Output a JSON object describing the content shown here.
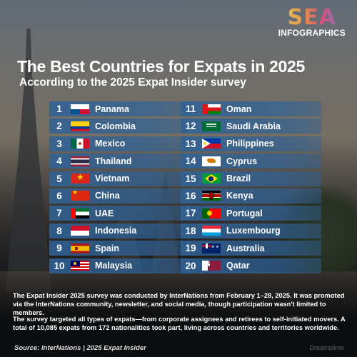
{
  "logo": {
    "main": "SEA",
    "sub": "INFOGRAPHICS"
  },
  "header": {
    "title": "The Best Countries for Expats in 2025",
    "subtitle": "According to the 2025 Expat Insider survey"
  },
  "rankings": {
    "left": [
      {
        "rank": "1",
        "country": "Panama",
        "flag": "panama-flag-icon"
      },
      {
        "rank": "2",
        "country": "Colombia",
        "flag": "colombia-flag-icon"
      },
      {
        "rank": "3",
        "country": "Mexico",
        "flag": "mexico-flag-icon"
      },
      {
        "rank": "4",
        "country": "Thailand",
        "flag": "thailand-flag-icon"
      },
      {
        "rank": "5",
        "country": "Vietnam",
        "flag": "vietnam-flag-icon"
      },
      {
        "rank": "6",
        "country": "China",
        "flag": "china-flag-icon"
      },
      {
        "rank": "7",
        "country": "UAE",
        "flag": "uae-flag-icon"
      },
      {
        "rank": "8",
        "country": "Indonesia",
        "flag": "indonesia-flag-icon"
      },
      {
        "rank": "9",
        "country": "Spain",
        "flag": "spain-flag-icon"
      },
      {
        "rank": "10",
        "country": "Malaysia",
        "flag": "malaysia-flag-icon"
      }
    ],
    "right": [
      {
        "rank": "11",
        "country": "Oman",
        "flag": "oman-flag-icon"
      },
      {
        "rank": "12",
        "country": "Saudi Arabia",
        "flag": "saudi-arabia-flag-icon"
      },
      {
        "rank": "13",
        "country": "Philippines",
        "flag": "philippines-flag-icon"
      },
      {
        "rank": "14",
        "country": "Cyprus",
        "flag": "cyprus-flag-icon"
      },
      {
        "rank": "15",
        "country": "Brazil",
        "flag": "brazil-flag-icon"
      },
      {
        "rank": "16",
        "country": "Kenya",
        "flag": "kenya-flag-icon"
      },
      {
        "rank": "17",
        "country": "Portugal",
        "flag": "portugal-flag-icon"
      },
      {
        "rank": "18",
        "country": "Luxembourg",
        "flag": "luxembourg-flag-icon"
      },
      {
        "rank": "19",
        "country": "Australia",
        "flag": "australia-flag-icon"
      },
      {
        "rank": "20",
        "country": "Qatar",
        "flag": "qatar-flag-icon"
      }
    ]
  },
  "description": {
    "p1": "The Expat Insider 2025 survey was conducted by InterNations from February 1–28, 2025. It was promoted via the InterNations community, newsletter, and social media, though participation wasn't limited to members.",
    "p2": "The survey targeted all types of expats—from corporate assignees and retirees to self-initiated movers. A total of 10,085 expats from 172 nationalities took part, living across countries and territories worldwide."
  },
  "footer": {
    "source": "Source: InterNations | 2025 Expat Insider",
    "watermark": "Dreamstime"
  }
}
